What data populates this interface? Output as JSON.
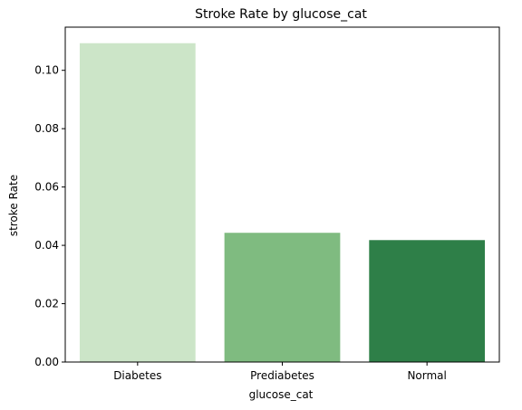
{
  "chart_data": {
    "type": "bar",
    "title": "Stroke Rate by glucose_cat",
    "xlabel": "glucose_cat",
    "ylabel": "stroke Rate",
    "categories": [
      "Diabetes",
      "Prediabetes",
      "Normal"
    ],
    "values": [
      0.1093,
      0.0443,
      0.0418
    ],
    "colors": [
      "#cce5c8",
      "#7fbb80",
      "#2e7f48"
    ],
    "ylim": [
      0,
      0.1148
    ],
    "yticks": [
      "0.00",
      "0.02",
      "0.04",
      "0.06",
      "0.08",
      "0.10"
    ],
    "ytick_values": [
      0.0,
      0.02,
      0.04,
      0.06,
      0.08,
      0.1
    ],
    "grid": false,
    "legend": "none"
  }
}
